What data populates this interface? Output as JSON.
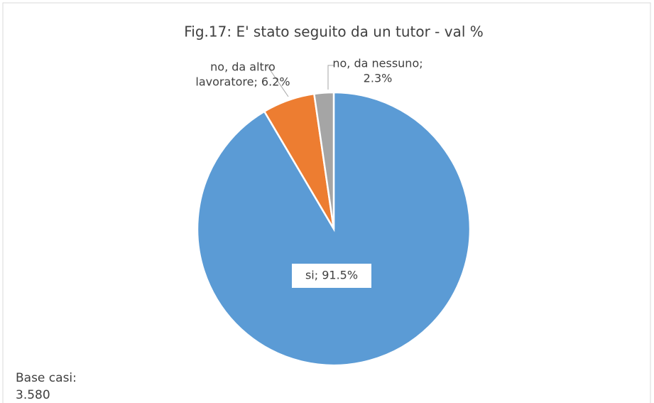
{
  "chart_data": {
    "type": "pie",
    "title": "Fig.17: E' stato seguito da un tutor - val %",
    "categories": [
      "si",
      "no, da altro lavoratore",
      "no, da nessuno"
    ],
    "values": [
      91.5,
      6.2,
      2.3
    ],
    "value_labels": [
      [
        "si; 91.5%"
      ],
      [
        "no, da altro",
        "lavoratore; 6.2%"
      ],
      [
        "no, da nessuno;",
        "2.3%"
      ]
    ],
    "colors": [
      "#5b9bd5",
      "#ed7d31",
      "#a5a5a5"
    ],
    "note": [
      "Base casi:",
      "3.580"
    ]
  }
}
